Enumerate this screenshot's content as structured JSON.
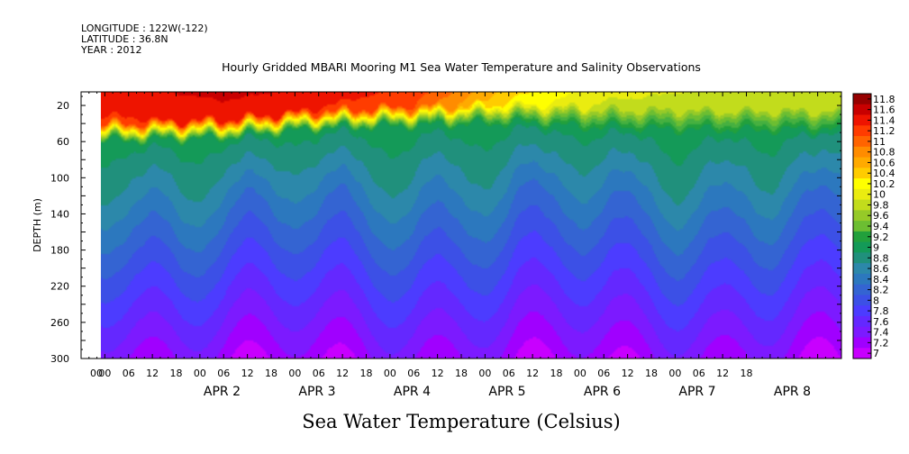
{
  "header": {
    "longitude": "LONGITUDE : 122W(-122)",
    "latitude": "LATITUDE : 36.8N",
    "year": "YEAR : 2012"
  },
  "colors": {
    "palette": [
      "#c800ff",
      "#a000ff",
      "#7c1aff",
      "#6428ff",
      "#4c3cff",
      "#3c50e6",
      "#3464d2",
      "#2c78be",
      "#2c88aa",
      "#20907c",
      "#149a58",
      "#22a03c",
      "#46b040",
      "#6cbe32",
      "#96ca28",
      "#c2dc1c",
      "#eaec10",
      "#ffff00",
      "#ffcc00",
      "#ffaa00",
      "#ff8c00",
      "#ff6400",
      "#ff3c00",
      "#ee1400",
      "#c80000",
      "#960000"
    ],
    "background": "#ffffff"
  },
  "chart_data": {
    "type": "heatmap",
    "title": "Hourly Gridded MBARI Mooring M1 Sea Water Temperature and Salinity Observations",
    "variable_label": "Sea Water Temperature (Celsius)",
    "ylabel": "DEPTH (m)",
    "xlabel": "",
    "ylim": [
      300,
      5
    ],
    "y_ticks": [
      20,
      60,
      100,
      140,
      180,
      220,
      260,
      300
    ],
    "x_range_hours": [
      0,
      192
    ],
    "data_start_hour": 5,
    "x_hour_ticks": [
      "00",
      "06",
      "12",
      "18",
      "00",
      "06",
      "12",
      "18",
      "00",
      "06",
      "12",
      "18",
      "00",
      "06",
      "12",
      "18",
      "00",
      "06",
      "12",
      "18",
      "00",
      "06",
      "12",
      "18",
      "00",
      "06",
      "12",
      "18"
    ],
    "x_day_labels": [
      "APR  2",
      "APR  3",
      "APR  4",
      "APR  5",
      "APR  6",
      "APR  7",
      "APR  8"
    ],
    "colorbar_levels": [
      "11.8",
      "11.6",
      "11.4",
      "11.2",
      "11",
      "10.8",
      "10.6",
      "10.4",
      "10.2",
      "10",
      "9.8",
      "9.6",
      "9.4",
      "9.2",
      "9",
      "8.8",
      "8.6",
      "8.4",
      "8.2",
      "8",
      "7.8",
      "7.6",
      "7.4",
      "7.2",
      "7"
    ],
    "value_range": [
      7,
      11.8
    ],
    "series": [
      {
        "name": "APR 2",
        "surface_temp": 11.5,
        "thermocline_depth_m": 45
      },
      {
        "name": "APR 3",
        "surface_temp": 11.6,
        "thermocline_depth_m": 42
      },
      {
        "name": "APR 4",
        "surface_temp": 11.5,
        "thermocline_depth_m": 32
      },
      {
        "name": "APR 5",
        "surface_temp": 11.3,
        "thermocline_depth_m": 28
      },
      {
        "name": "APR 6",
        "surface_temp": 10.5,
        "thermocline_depth_m": 25
      },
      {
        "name": "APR 7",
        "surface_temp": 10.1,
        "thermocline_depth_m": 30
      },
      {
        "name": "APR 8",
        "surface_temp": 10.0,
        "thermocline_depth_m": 33
      }
    ],
    "bottom_temp_at_300m": 7.2
  }
}
